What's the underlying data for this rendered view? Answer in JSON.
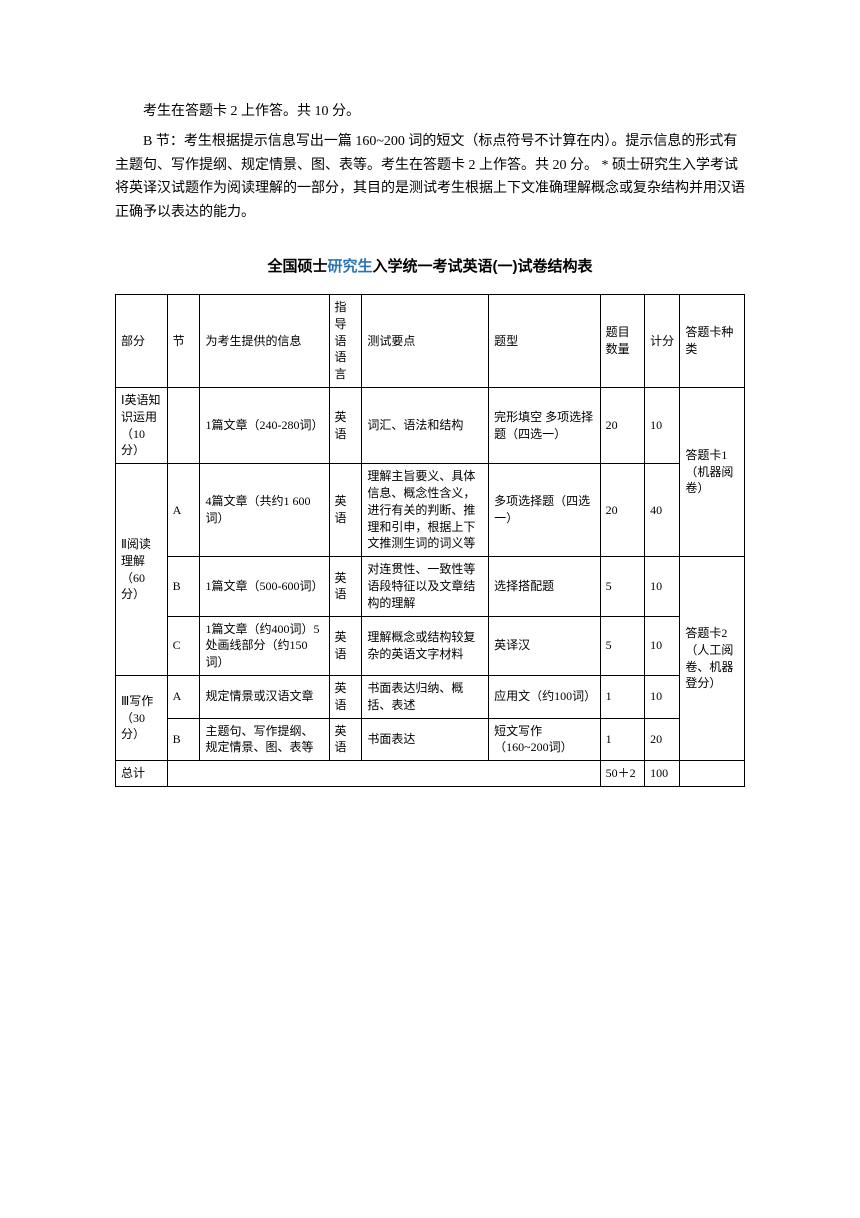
{
  "paragraphs": {
    "p1": "考生在答题卡 2 上作答。共 10 分。",
    "p2": "B 节：考生根据提示信息写出一篇 160~200 词的短文（标点符号不计算在内）。提示信息的形式有主题句、写作提纲、规定情景、图、表等。考生在答题卡 2 上作答。共 20 分。 * 硕士研究生入学考试将英译汉试题作为阅读理解的一部分，其目的是测试考生根据上下文准确理解概念或复杂结构并用汉语正确予以表达的能力。"
  },
  "title": {
    "prefix": "全国硕士",
    "highlight": "研究生",
    "suffix": "入学统一考试英语(一)试卷结构表"
  },
  "headers": {
    "part": "部分",
    "section": "节",
    "info": "为考生提供的信息",
    "lang": "指导语语言",
    "points": "测试要点",
    "type": "题型",
    "count": "题目数量",
    "score": "计分",
    "card": "答题卡种类"
  },
  "rows": {
    "r1": {
      "part": "Ⅰ英语知识运用（10分）",
      "section": "",
      "info": "1篇文章（240-280词）",
      "lang": "英语",
      "points": "词汇、语法和结构",
      "type": "完形填空 多项选择题（四选一）",
      "count": "20",
      "score": "10"
    },
    "r2": {
      "part": "Ⅱ阅读理解（60分）",
      "section": "A",
      "info": "4篇文章（共约1 600词）",
      "lang": "英语",
      "points": "理解主旨要义、具体信息、概念性含义，进行有关的判断、推理和引申，根据上下文推测生词的词义等",
      "type": "多项选择题（四选一）",
      "count": "20",
      "score": "40",
      "card": "答题卡1（机器阅卷）"
    },
    "r3": {
      "section": "B",
      "info": "1篇文章（500-600词）",
      "lang": "英语",
      "points": "对连贯性、一致性等语段特征以及文章结构的理解",
      "type": "选择搭配题",
      "count": "5",
      "score": "10"
    },
    "r4": {
      "section": "C",
      "info": "1篇文章（约400词）5处画线部分（约150词）",
      "lang": "英语",
      "points": "理解概念或结构较复杂的英语文字材料",
      "type": "英译汉",
      "count": "5",
      "score": "10"
    },
    "r5": {
      "part": "Ⅲ写作（30分）",
      "section": "A",
      "info": "规定情景或汉语文章",
      "lang": "英语",
      "points": "书面表达归纳、概括、表述",
      "type": "应用文（约100词）",
      "count": "1",
      "score": "10",
      "card": "答题卡2（人工阅卷、机器登分）"
    },
    "r6": {
      "section": "B",
      "info": "主题句、写作提纲、规定情景、图、表等",
      "lang": "英语",
      "points": "书面表达",
      "type": "短文写作（160~200词）",
      "count": "1",
      "score": "20"
    },
    "total": {
      "label": "总计",
      "count": "50＋2",
      "score": "100"
    }
  }
}
